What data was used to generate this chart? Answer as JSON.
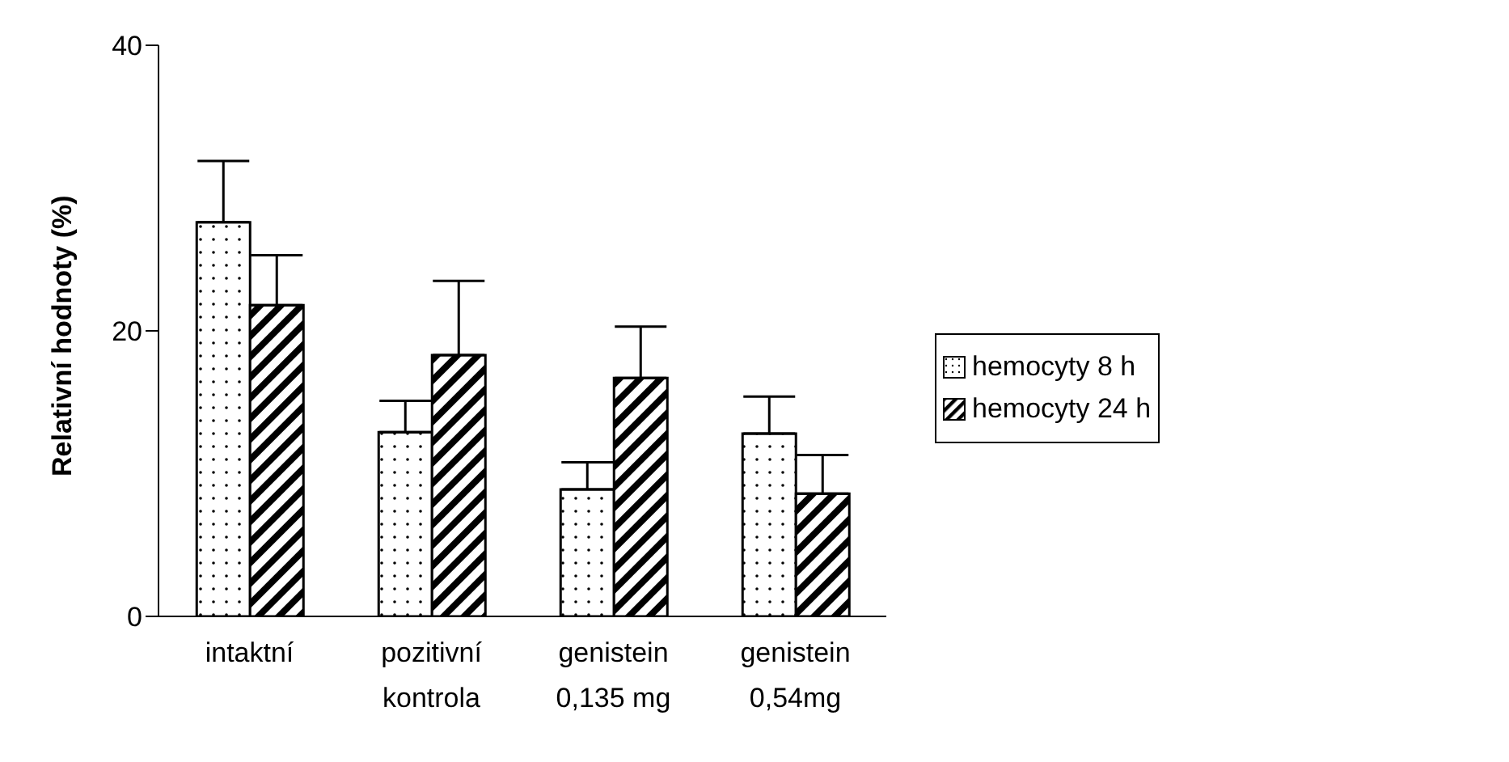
{
  "chart_data": {
    "type": "bar",
    "ylabel": "Relativní hodnoty (%)",
    "categories": [
      "intaktní",
      "pozitivní kontrola",
      "genistein 0,135 mg",
      "genistein 0,54mg"
    ],
    "series": [
      {
        "name": "hemocyty 8 h",
        "color": "#000000",
        "values": [
          27.6,
          12.9,
          8.9,
          12.8
        ],
        "errors": [
          4.3,
          2.2,
          1.9,
          2.6
        ]
      },
      {
        "name": "hemocyty 24 h",
        "color": "#000000",
        "values": [
          21.8,
          18.3,
          16.7,
          8.6
        ],
        "errors": [
          3.5,
          5.2,
          3.6,
          2.7
        ]
      }
    ],
    "ylim": [
      0,
      40
    ],
    "yticks": [
      0,
      20,
      40
    ],
    "grid": false,
    "legend": "right"
  }
}
